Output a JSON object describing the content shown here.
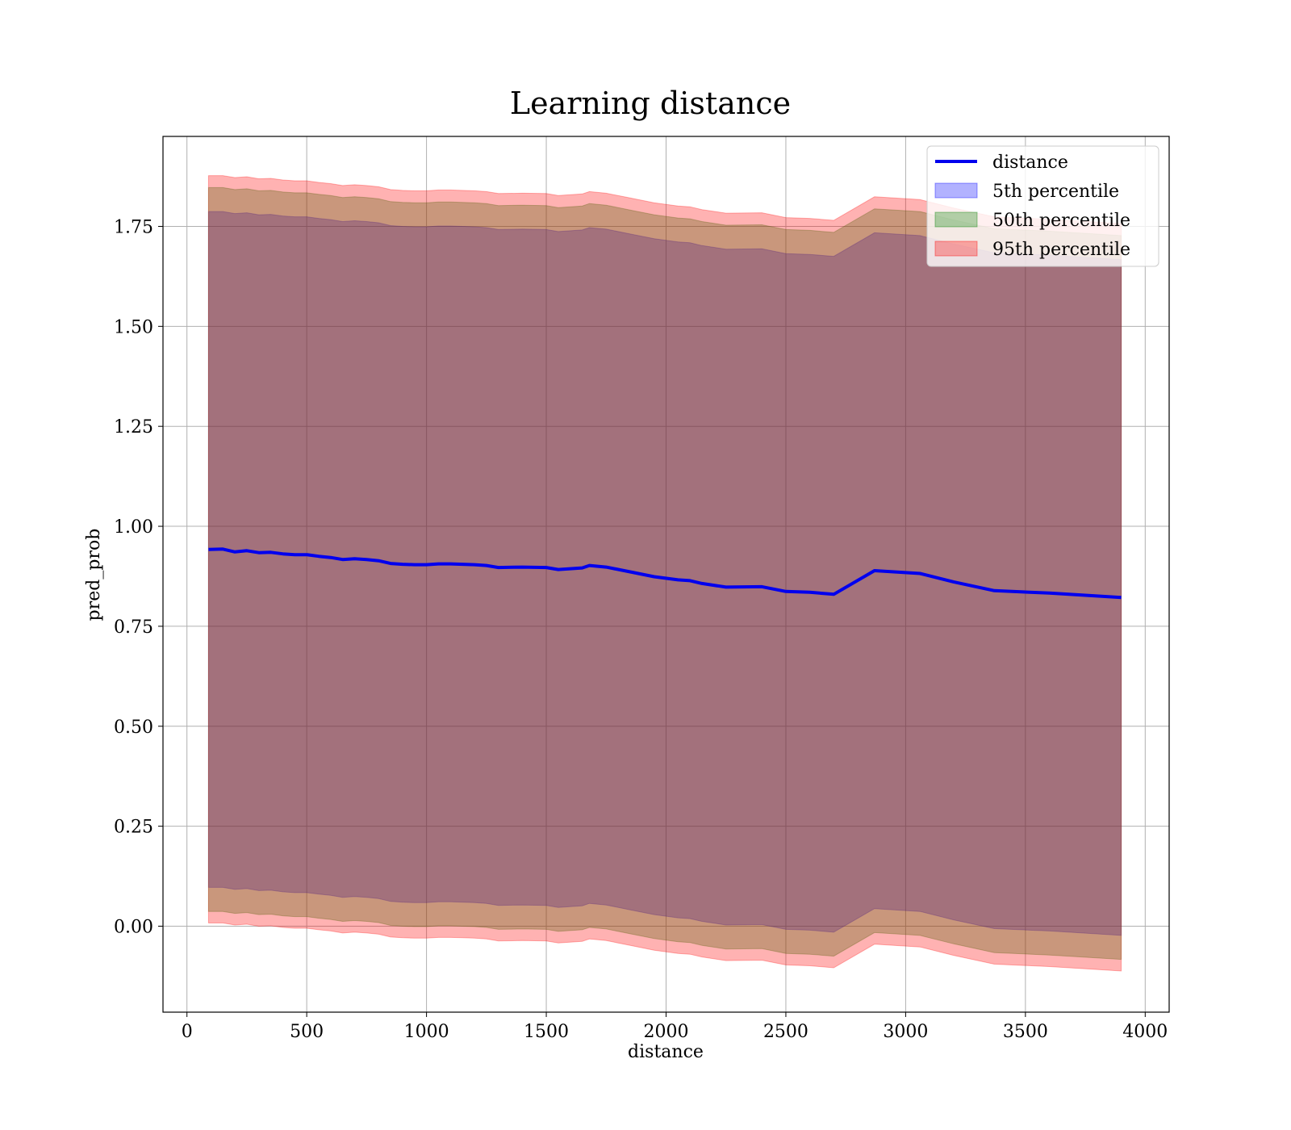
{
  "chart_data": {
    "type": "area",
    "title": "Learning distance",
    "xlabel": "distance",
    "ylabel": "pred_prob",
    "xlim": [
      -100,
      4100
    ],
    "ylim": [
      -0.215,
      1.975
    ],
    "xticks": [
      0,
      500,
      1000,
      1500,
      2000,
      2500,
      3000,
      3500,
      4000
    ],
    "xtick_labels": [
      "0",
      "500",
      "1000",
      "1500",
      "2000",
      "2500",
      "3000",
      "3500",
      "4000"
    ],
    "yticks": [
      0.0,
      0.25,
      0.5,
      0.75,
      1.0,
      1.25,
      1.5,
      1.75
    ],
    "ytick_labels": [
      "0.00",
      "0.25",
      "0.50",
      "0.75",
      "1.00",
      "1.25",
      "1.50",
      "1.75"
    ],
    "grid": true,
    "legend_position": "top-right",
    "x": [
      90,
      150,
      200,
      250,
      300,
      350,
      400,
      450,
      500,
      550,
      600,
      650,
      700,
      750,
      800,
      850,
      900,
      950,
      1000,
      1050,
      1100,
      1150,
      1200,
      1250,
      1300,
      1400,
      1500,
      1550,
      1650,
      1680,
      1750,
      1850,
      1950,
      2050,
      2100,
      2150,
      2250,
      2400,
      2500,
      2600,
      2700,
      2870,
      3060,
      3200,
      3370,
      3600,
      3900
    ],
    "series": [
      {
        "name": "distance",
        "kind": "line",
        "color": "#0000ee",
        "values": [
          0.942,
          0.943,
          0.936,
          0.939,
          0.934,
          0.935,
          0.931,
          0.929,
          0.929,
          0.925,
          0.922,
          0.917,
          0.919,
          0.917,
          0.914,
          0.907,
          0.905,
          0.904,
          0.904,
          0.906,
          0.906,
          0.905,
          0.904,
          0.902,
          0.897,
          0.898,
          0.897,
          0.892,
          0.896,
          0.902,
          0.898,
          0.886,
          0.874,
          0.866,
          0.864,
          0.857,
          0.848,
          0.849,
          0.837,
          0.835,
          0.83,
          0.889,
          0.882,
          0.861,
          0.839,
          0.833,
          0.822
        ]
      },
      {
        "name": "5th percentile",
        "kind": "band",
        "color": "#0000ff",
        "opacity": 0.3,
        "lower": [
          0.097,
          0.097,
          0.092,
          0.094,
          0.089,
          0.09,
          0.086,
          0.084,
          0.084,
          0.08,
          0.077,
          0.072,
          0.074,
          0.072,
          0.069,
          0.062,
          0.06,
          0.059,
          0.059,
          0.061,
          0.061,
          0.06,
          0.059,
          0.057,
          0.052,
          0.053,
          0.052,
          0.047,
          0.051,
          0.057,
          0.053,
          0.041,
          0.029,
          0.021,
          0.019,
          0.012,
          0.003,
          0.004,
          -0.008,
          -0.01,
          -0.015,
          0.044,
          0.037,
          0.016,
          -0.006,
          -0.012,
          -0.023
        ],
        "upper": [
          1.787,
          1.787,
          1.782,
          1.784,
          1.779,
          1.78,
          1.776,
          1.774,
          1.774,
          1.77,
          1.767,
          1.762,
          1.764,
          1.762,
          1.759,
          1.752,
          1.75,
          1.749,
          1.749,
          1.751,
          1.751,
          1.75,
          1.749,
          1.747,
          1.742,
          1.743,
          1.742,
          1.737,
          1.741,
          1.747,
          1.743,
          1.731,
          1.719,
          1.711,
          1.709,
          1.702,
          1.693,
          1.694,
          1.682,
          1.68,
          1.675,
          1.734,
          1.727,
          1.706,
          1.684,
          1.678,
          1.667
        ]
      },
      {
        "name": "50th percentile",
        "kind": "band",
        "color": "#008000",
        "opacity": 0.3,
        "lower": [
          0.037,
          0.037,
          0.032,
          0.034,
          0.029,
          0.03,
          0.026,
          0.024,
          0.024,
          0.02,
          0.017,
          0.012,
          0.014,
          0.012,
          0.009,
          0.002,
          0.0,
          -0.001,
          -0.001,
          0.001,
          0.001,
          0.0,
          -0.001,
          -0.003,
          -0.008,
          -0.007,
          -0.008,
          -0.013,
          -0.009,
          -0.003,
          -0.007,
          -0.019,
          -0.031,
          -0.039,
          -0.041,
          -0.048,
          -0.057,
          -0.056,
          -0.068,
          -0.07,
          -0.075,
          -0.016,
          -0.023,
          -0.044,
          -0.066,
          -0.072,
          -0.083
        ],
        "upper": [
          1.847,
          1.847,
          1.842,
          1.844,
          1.839,
          1.84,
          1.836,
          1.834,
          1.834,
          1.83,
          1.827,
          1.822,
          1.824,
          1.822,
          1.819,
          1.812,
          1.81,
          1.809,
          1.809,
          1.811,
          1.811,
          1.81,
          1.809,
          1.807,
          1.802,
          1.803,
          1.802,
          1.797,
          1.801,
          1.807,
          1.803,
          1.791,
          1.779,
          1.771,
          1.769,
          1.762,
          1.753,
          1.754,
          1.742,
          1.74,
          1.735,
          1.794,
          1.787,
          1.766,
          1.744,
          1.738,
          1.727
        ]
      },
      {
        "name": "95th percentile",
        "kind": "band",
        "color": "#ff0000",
        "opacity": 0.3,
        "lower": [
          0.008,
          0.008,
          0.003,
          0.005,
          0.0,
          0.001,
          -0.003,
          -0.005,
          -0.005,
          -0.009,
          -0.012,
          -0.017,
          -0.015,
          -0.017,
          -0.02,
          -0.027,
          -0.029,
          -0.03,
          -0.03,
          -0.028,
          -0.028,
          -0.029,
          -0.03,
          -0.032,
          -0.037,
          -0.036,
          -0.037,
          -0.042,
          -0.038,
          -0.032,
          -0.036,
          -0.048,
          -0.06,
          -0.068,
          -0.07,
          -0.077,
          -0.086,
          -0.085,
          -0.097,
          -0.099,
          -0.104,
          -0.045,
          -0.052,
          -0.073,
          -0.095,
          -0.101,
          -0.112
        ],
        "upper": [
          1.877,
          1.877,
          1.872,
          1.874,
          1.869,
          1.87,
          1.866,
          1.864,
          1.864,
          1.86,
          1.857,
          1.852,
          1.854,
          1.852,
          1.849,
          1.842,
          1.84,
          1.839,
          1.839,
          1.841,
          1.841,
          1.84,
          1.839,
          1.837,
          1.832,
          1.833,
          1.832,
          1.827,
          1.831,
          1.837,
          1.833,
          1.821,
          1.809,
          1.801,
          1.799,
          1.792,
          1.783,
          1.784,
          1.772,
          1.77,
          1.765,
          1.824,
          1.817,
          1.796,
          1.774,
          1.768,
          1.757
        ]
      }
    ]
  }
}
